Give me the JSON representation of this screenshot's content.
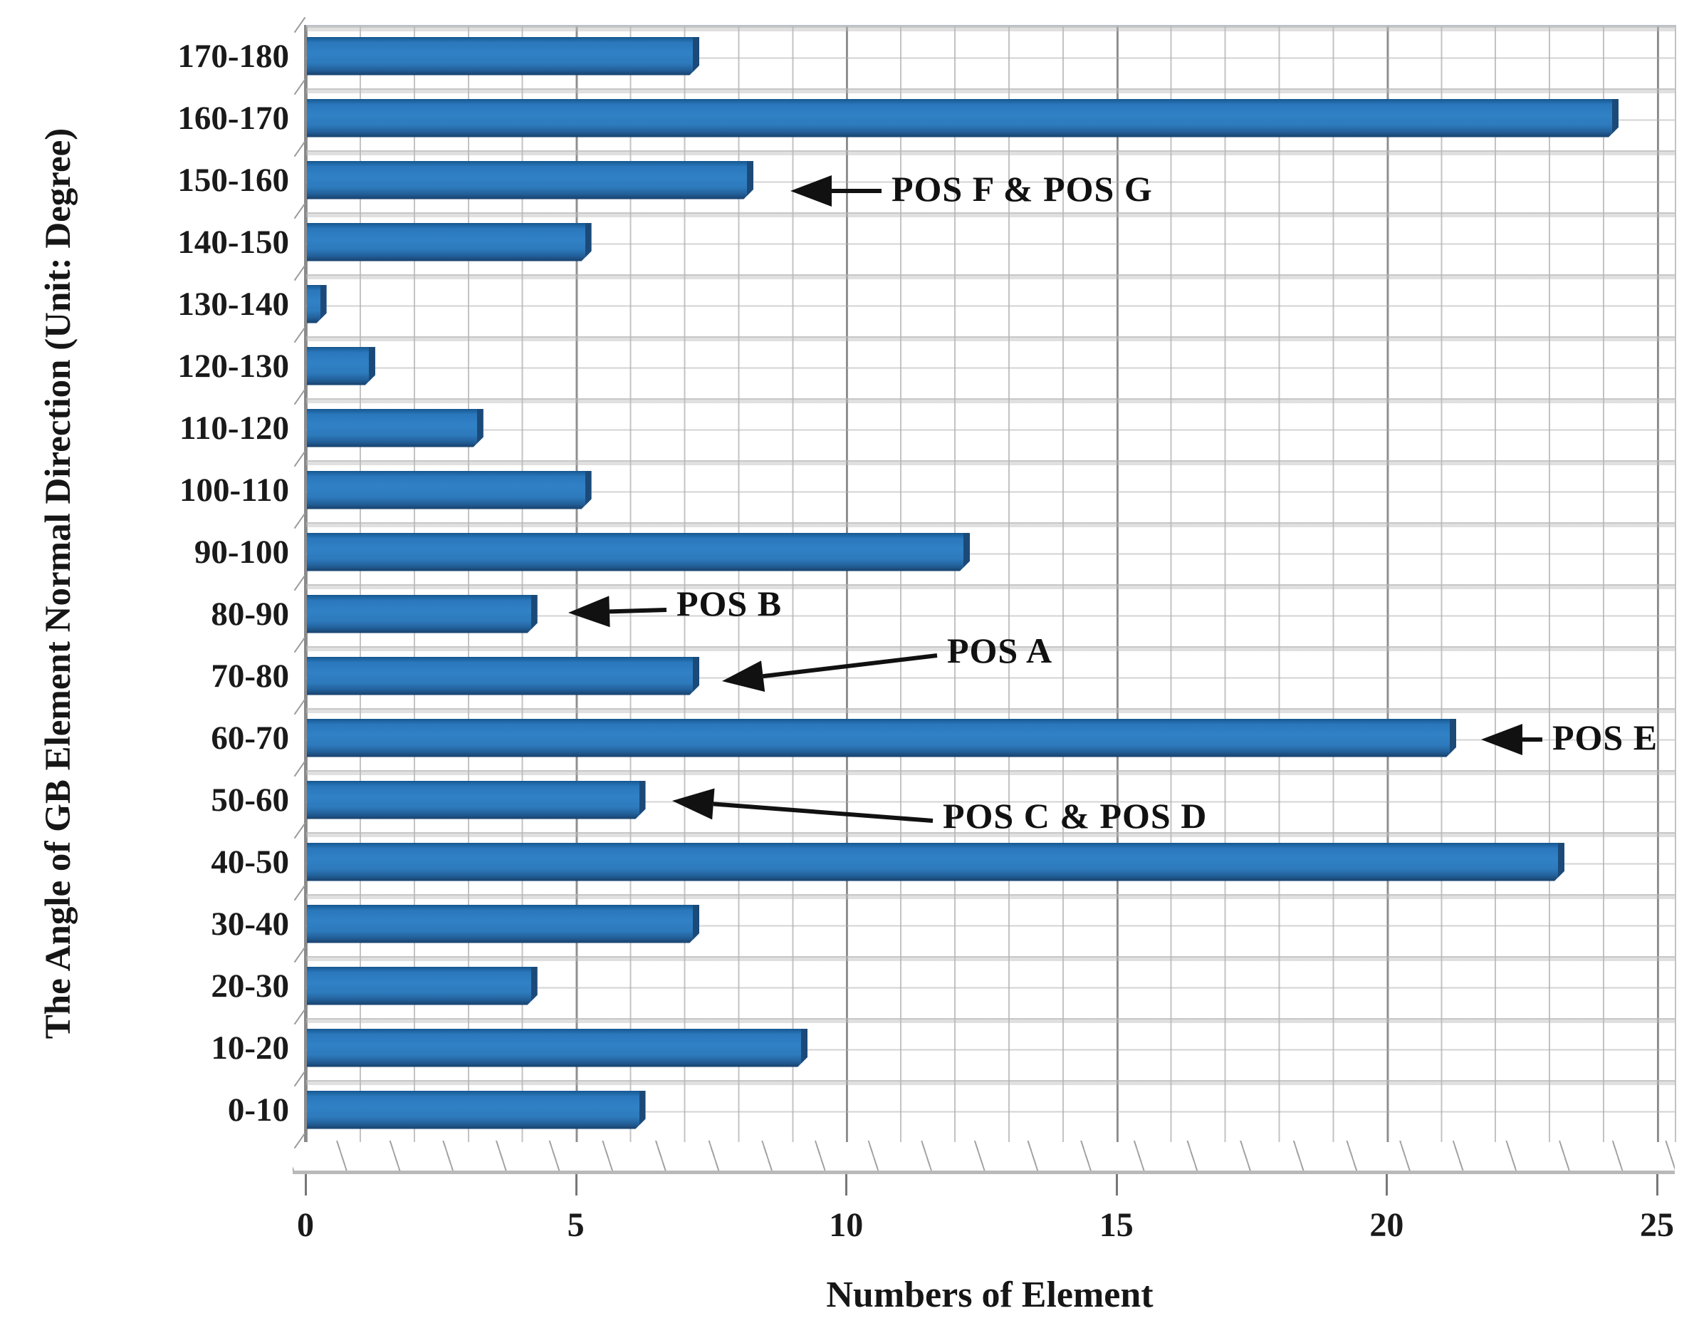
{
  "chart_data": {
    "type": "bar",
    "orientation": "horizontal",
    "title": "",
    "xlabel": "Numbers of Element",
    "ylabel": "The Angle of GB Element Normal Direction (Unit: Degree)",
    "xlim": [
      0,
      25
    ],
    "x_ticks": [
      0,
      5,
      10,
      15,
      20,
      25
    ],
    "x_tick_labels": [
      "0",
      "5",
      "10",
      "15",
      "20",
      "25"
    ],
    "grid": true,
    "legend": false,
    "bar_color": "#2e7bbf",
    "categories_top_to_bottom": [
      "170-180",
      "160-170",
      "150-160",
      "140-150",
      "130-140",
      "120-130",
      "110-120",
      "100-110",
      "90-100",
      "80-90",
      "70-80",
      "60-70",
      "50-60",
      "40-50",
      "30-40",
      "20-30",
      "10-20",
      "0-10"
    ],
    "values_top_to_bottom": [
      7,
      24,
      8,
      5,
      0.1,
      1,
      3,
      5,
      12,
      4,
      7,
      21,
      6,
      23,
      7,
      4,
      9,
      6
    ],
    "annotations": [
      {
        "label": "POS F & POS G",
        "target": "150-160"
      },
      {
        "label": "POS B",
        "target": "80-90"
      },
      {
        "label": "POS A",
        "target": "70-80"
      },
      {
        "label": "POS E",
        "target": "60-70"
      },
      {
        "label": "POS C & POS D",
        "target": "50-60"
      }
    ]
  }
}
